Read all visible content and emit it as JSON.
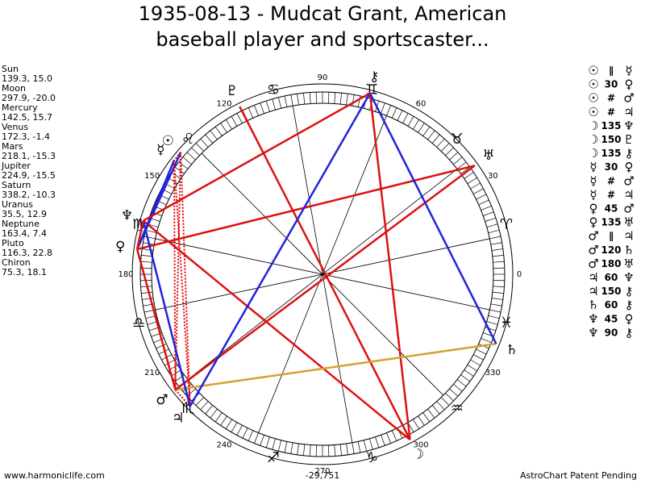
{
  "header": {
    "title_line1": "1935-08-13 - Mudcat Grant, American",
    "title_line2": "baseball player and sportscaster..."
  },
  "planets": [
    {
      "name": "Sun",
      "position": "139.3, 15.0",
      "glyph": "☉"
    },
    {
      "name": "Moon",
      "position": "297.9, -20.0",
      "glyph": "☽"
    },
    {
      "name": "Mercury",
      "position": "142.5, 15.7",
      "glyph": "☿"
    },
    {
      "name": "Venus",
      "position": "172.3, -1.4",
      "glyph": "♀"
    },
    {
      "name": "Mars",
      "position": "218.1, -15.3",
      "glyph": "♂"
    },
    {
      "name": "Jupiter",
      "position": "224.9, -15.5",
      "glyph": "♃"
    },
    {
      "name": "Saturn",
      "position": "338.2, -10.3",
      "glyph": "♄"
    },
    {
      "name": "Uranus",
      "position": "35.5, 12.9",
      "glyph": "♅"
    },
    {
      "name": "Neptune",
      "position": "163.4, 7.4",
      "glyph": "♆"
    },
    {
      "name": "Pluto",
      "position": "116.3, 22.8",
      "glyph": "♇"
    },
    {
      "name": "Chiron",
      "position": "75.3, 18.1",
      "glyph": "⚷"
    }
  ],
  "aspects": [
    {
      "from": "☉",
      "aspect": "∥",
      "to": "☿",
      "color": "#dd0000",
      "dotted": true
    },
    {
      "from": "☉",
      "aspect": "30",
      "to": "♀",
      "color": "#2222dd"
    },
    {
      "from": "☉",
      "aspect": "#",
      "to": "♂",
      "color": "#dd0000",
      "dotted": true
    },
    {
      "from": "☉",
      "aspect": "#",
      "to": "♃",
      "color": "#dd0000",
      "dotted": true
    },
    {
      "from": "☽",
      "aspect": "135",
      "to": "♆",
      "color": "#dd1111"
    },
    {
      "from": "☽",
      "aspect": "150",
      "to": "♇",
      "color": "#dd1111"
    },
    {
      "from": "☽",
      "aspect": "135",
      "to": "⚷",
      "color": "#dd1111"
    },
    {
      "from": "☿",
      "aspect": "30",
      "to": "♀",
      "color": "#2222dd"
    },
    {
      "from": "☿",
      "aspect": "#",
      "to": "♂",
      "color": "#dd0000",
      "dotted": true
    },
    {
      "from": "☿",
      "aspect": "#",
      "to": "♃",
      "color": "#dd0000",
      "dotted": true
    },
    {
      "from": "♀",
      "aspect": "45",
      "to": "♂",
      "color": "#dd1111"
    },
    {
      "from": "♀",
      "aspect": "135",
      "to": "♅",
      "color": "#dd1111"
    },
    {
      "from": "♂",
      "aspect": "∥",
      "to": "♃",
      "color": "#dd0000",
      "dotted": true
    },
    {
      "from": "♂",
      "aspect": "120",
      "to": "♄",
      "color": "#d4a030"
    },
    {
      "from": "♂",
      "aspect": "180",
      "to": "♅",
      "color": "#dd1111"
    },
    {
      "from": "♃",
      "aspect": "60",
      "to": "♆",
      "color": "#2222dd"
    },
    {
      "from": "♃",
      "aspect": "150",
      "to": "⚷",
      "color": "#2222dd"
    },
    {
      "from": "♄",
      "aspect": "60",
      "to": "⚷",
      "color": "#2222dd"
    },
    {
      "from": "♆",
      "aspect": "45",
      "to": "♀",
      "color": "#dd1111"
    },
    {
      "from": "♆",
      "aspect": "90",
      "to": "⚷",
      "color": "#dd1111"
    }
  ],
  "degree_labels": [
    0,
    30,
    60,
    90,
    120,
    150,
    180,
    210,
    240,
    270,
    300,
    330
  ],
  "zodiac": [
    "♈",
    "♉",
    "♊",
    "♋",
    "♌",
    "♍",
    "♎",
    "♏",
    "♐",
    "♑",
    "♒",
    "♓"
  ],
  "footer": {
    "left": "www.harmoniclife.com",
    "center": "-29,751",
    "right": "AstroChart Patent Pending"
  }
}
